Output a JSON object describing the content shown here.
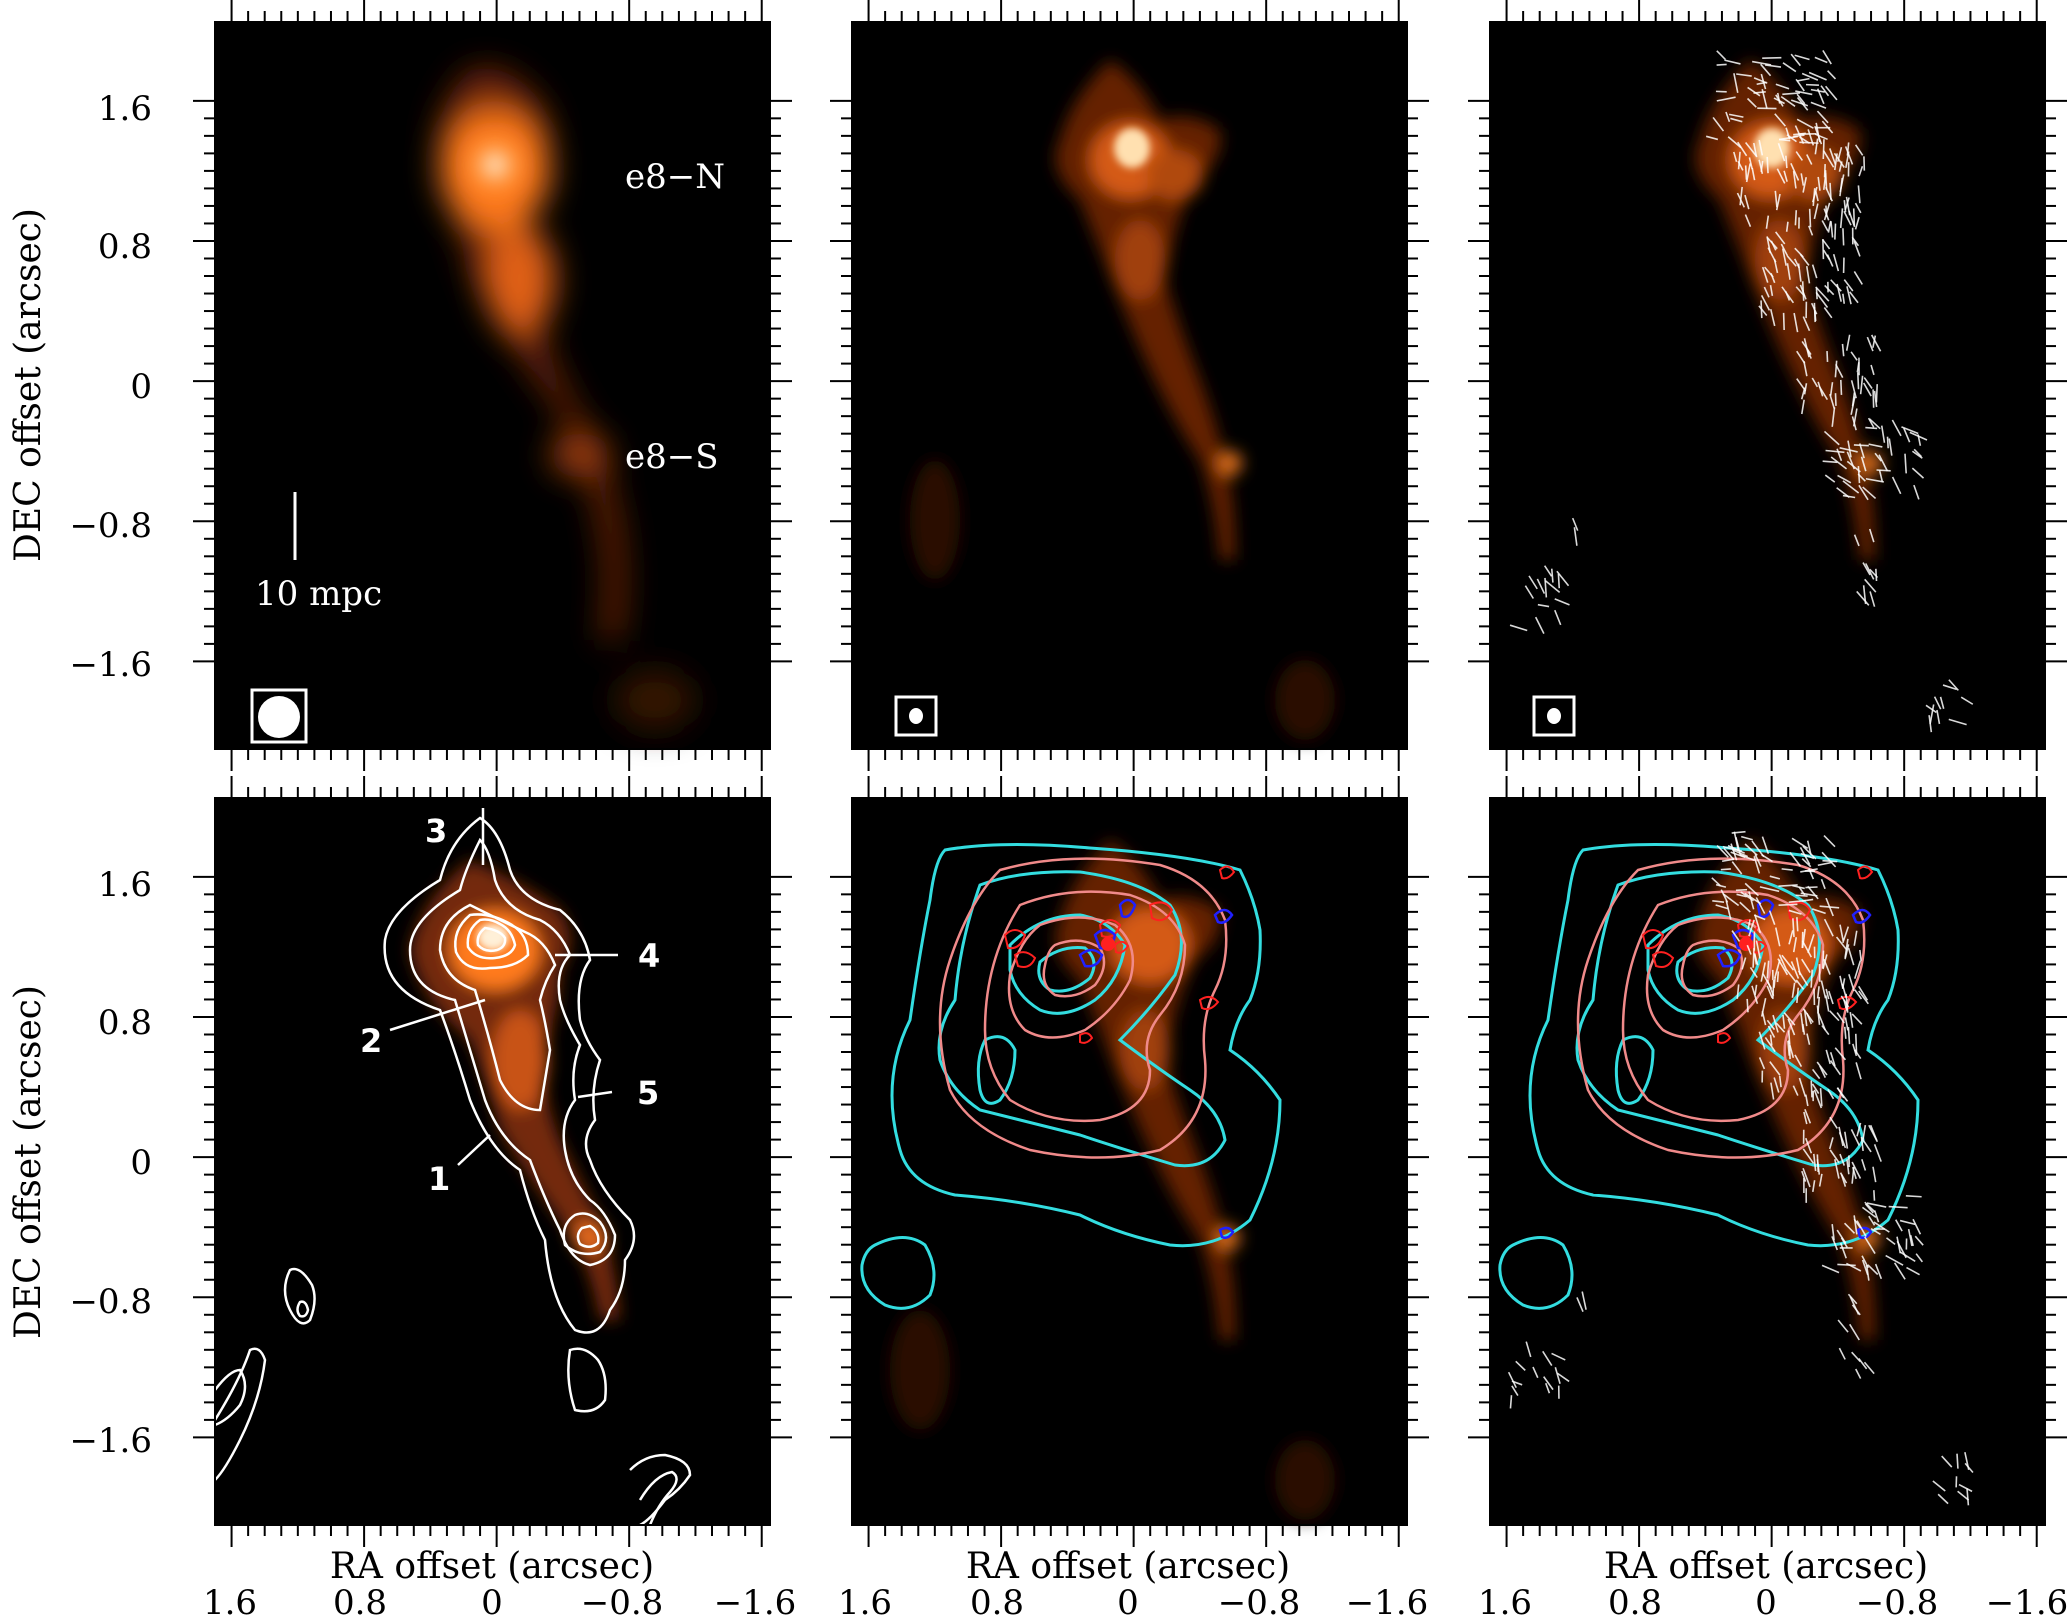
{
  "figure": {
    "ra_axis_title": "RA offset (arcsec)",
    "dec_axis_title": "DEC offset (arcsec)",
    "ra_ticks": [
      "1.6",
      "0.8",
      "0",
      "−0.8",
      "−1.6"
    ],
    "dec_ticks": [
      "1.6",
      "0.8",
      "0",
      "−0.8",
      "−1.6"
    ],
    "ra_tick_values": [
      1.6,
      0.8,
      0,
      -0.8,
      -1.6
    ],
    "dec_tick_values": [
      1.6,
      0.8,
      0,
      -0.8,
      -1.6
    ],
    "ra_range": [
      1.7,
      -1.65
    ],
    "dec_range": [
      2.05,
      -2.1
    ],
    "colors": {
      "background": "#000000",
      "emission": "#ff7a1a",
      "contour_white": "#ffffff",
      "contour_cyan": "#33dde0",
      "contour_pink": "#f08a8a",
      "contour_red": "#ff2020",
      "contour_blue": "#2020ff",
      "vectors": "#ffffff"
    }
  },
  "panels": {
    "top_left": {
      "source_north_label": "e8−N",
      "source_south_label": "e8−S",
      "scale_bar_label": "10 mpc",
      "beam": "large"
    },
    "top_middle": {
      "beam": "small"
    },
    "top_right": {
      "beam": "small",
      "vectors": true
    },
    "bottom_left": {
      "contour_labels": [
        "1",
        "2",
        "3",
        "4",
        "5"
      ]
    },
    "bottom_middle": {
      "overlay": "cyan, pink, red and blue contours"
    },
    "bottom_right": {
      "overlay": "contours and vectors"
    }
  }
}
